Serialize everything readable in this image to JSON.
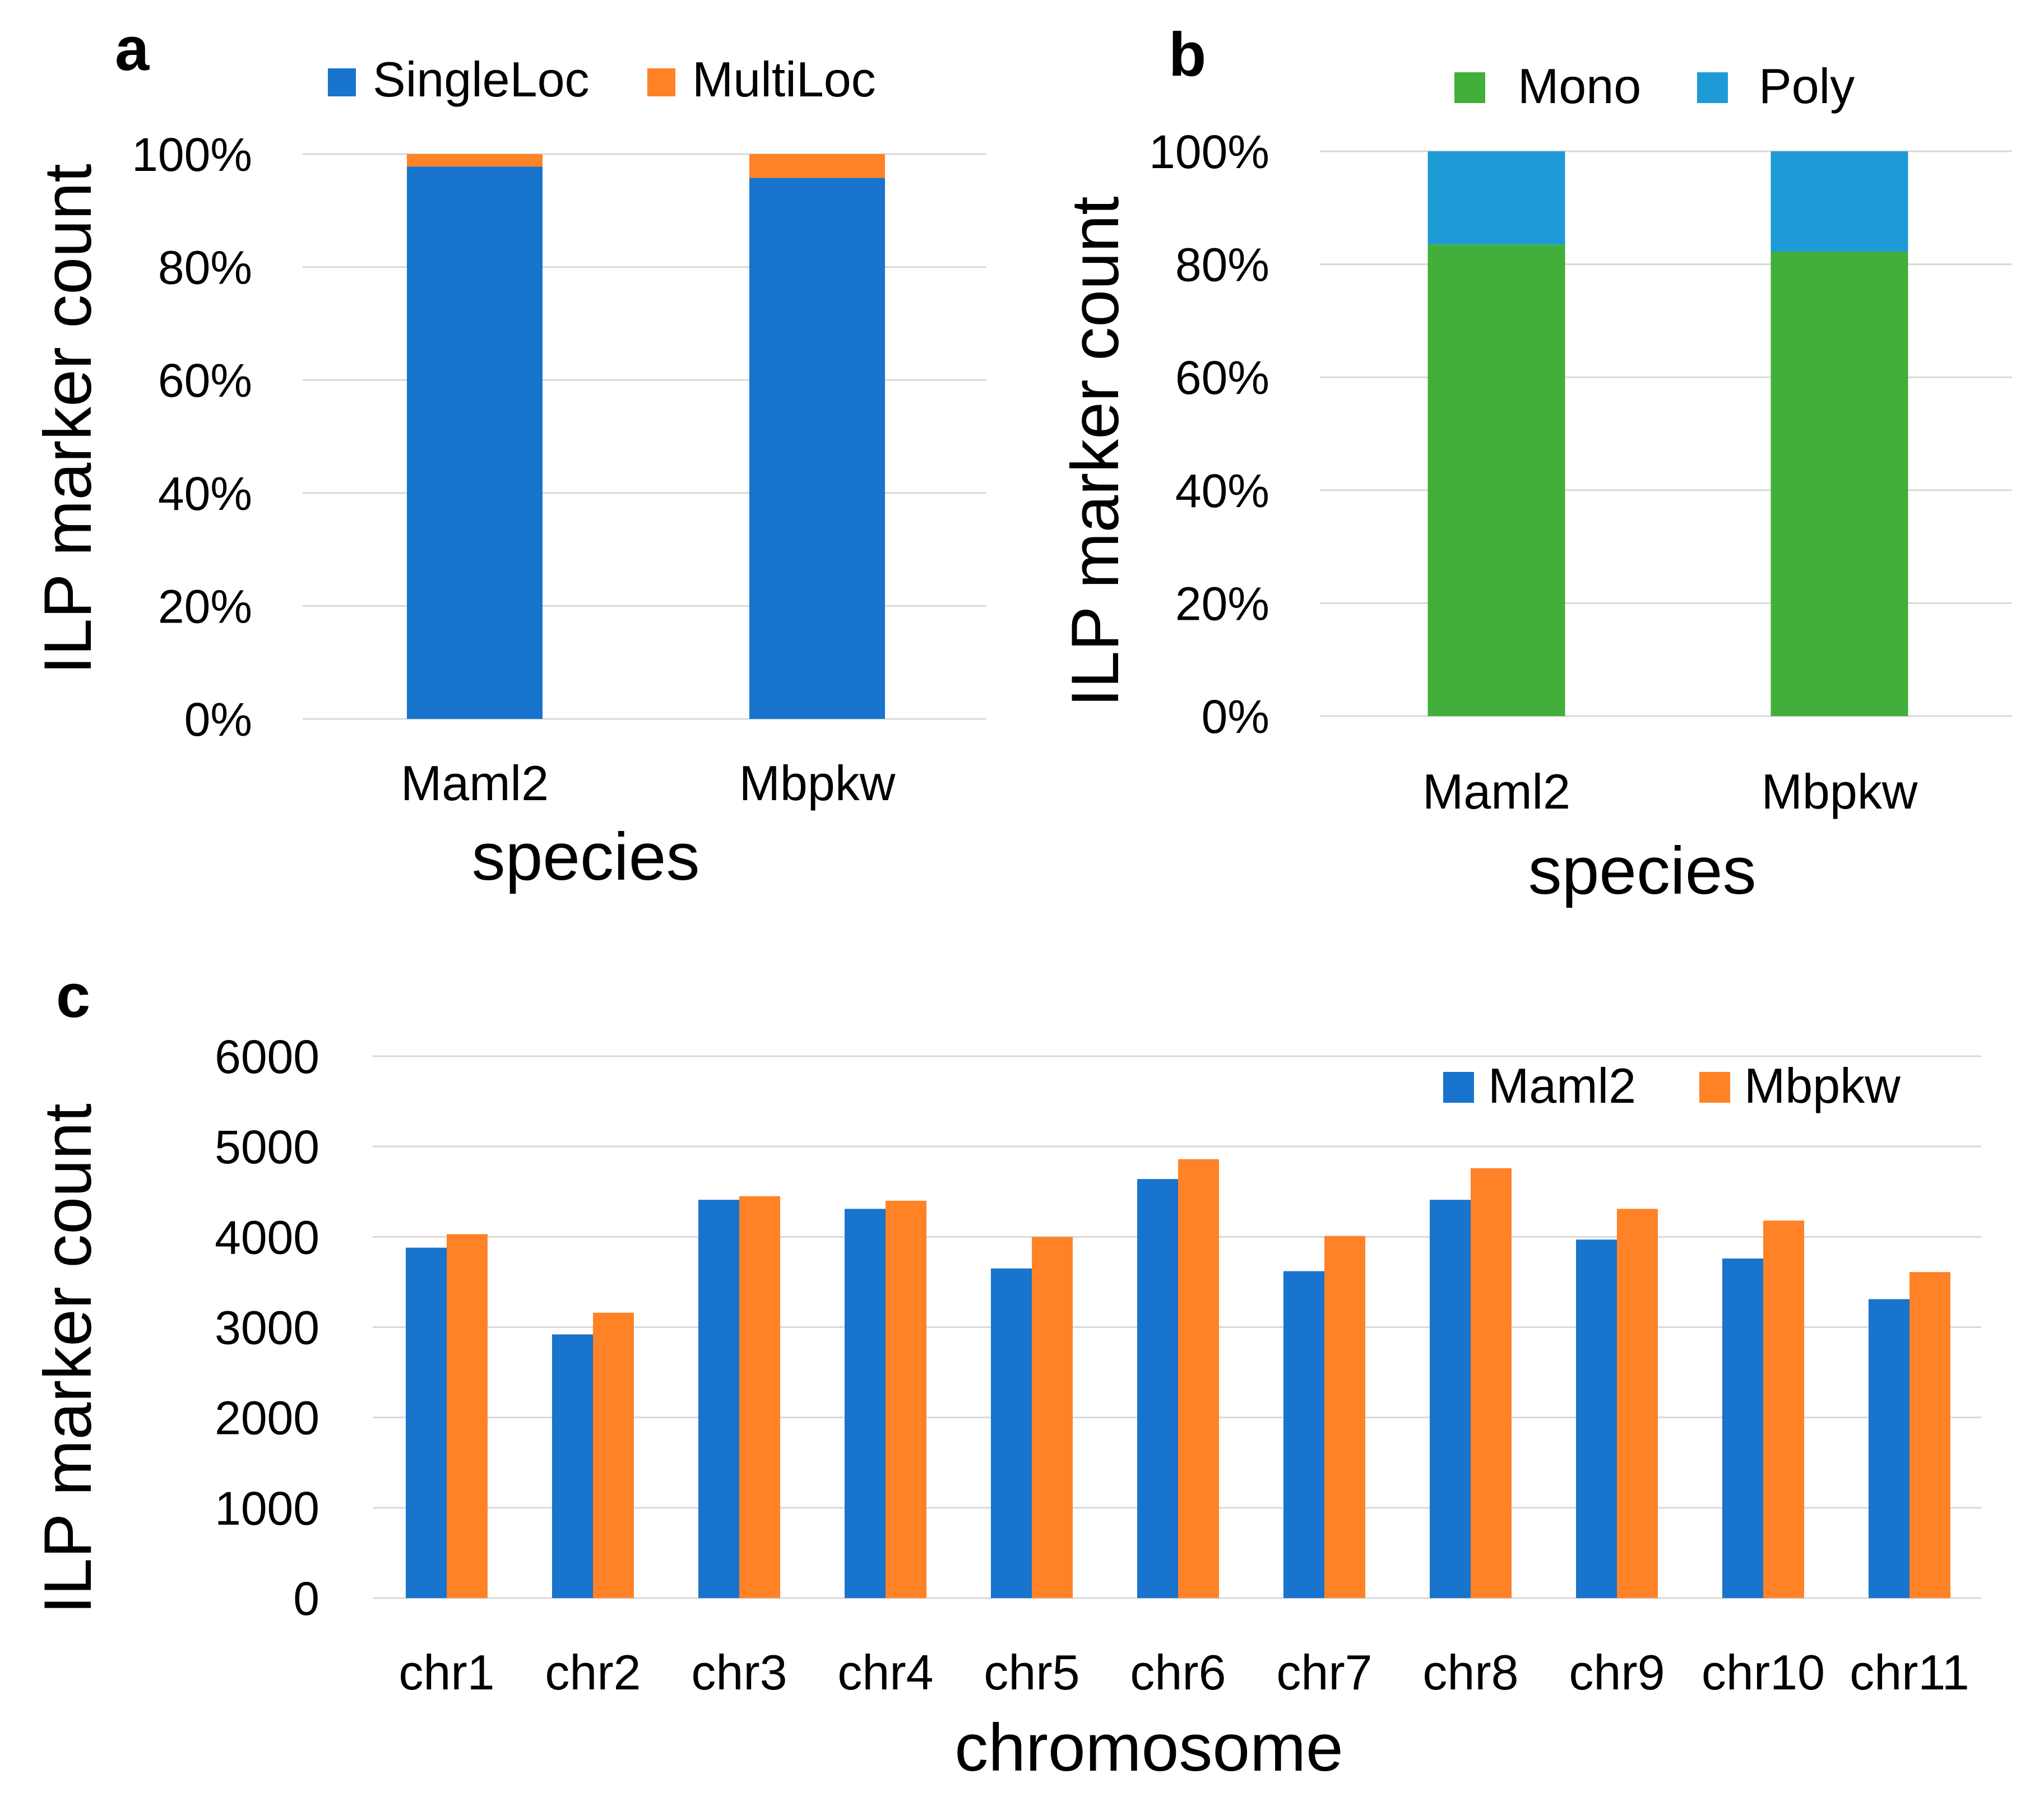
{
  "colors": {
    "singleloc": "#1874CD",
    "multiloc": "#FF8227",
    "mono": "#41AF39",
    "poly": "#1E9BD7",
    "maml2": "#1874CD",
    "mbpkw": "#FF8227",
    "grid": "#d9d9d9"
  },
  "chart_data": [
    {
      "panel": "a",
      "type": "bar",
      "stacked": true,
      "percent": true,
      "title": "",
      "xlabel": "species",
      "ylabel": "ILP marker count",
      "categories": [
        "Maml2",
        "Mbpkw"
      ],
      "series": [
        {
          "name": "SingleLoc",
          "values": [
            97.8,
            95.8
          ]
        },
        {
          "name": "MultiLoc",
          "values": [
            2.2,
            4.2
          ]
        }
      ],
      "ylim": [
        0,
        100
      ],
      "yticks": [
        "0%",
        "20%",
        "40%",
        "60%",
        "80%",
        "100%"
      ],
      "grid": true,
      "legend": "top"
    },
    {
      "panel": "b",
      "type": "bar",
      "stacked": true,
      "percent": true,
      "title": "",
      "xlabel": "species",
      "ylabel": "ILP marker count",
      "categories": [
        "Maml2",
        "Mbpkw"
      ],
      "series": [
        {
          "name": "Mono",
          "values": [
            83.5,
            82.2
          ]
        },
        {
          "name": "Poly",
          "values": [
            16.5,
            17.8
          ]
        }
      ],
      "ylim": [
        0,
        100
      ],
      "yticks": [
        "0%",
        "20%",
        "40%",
        "60%",
        "80%",
        "100%"
      ],
      "grid": true,
      "legend": "top"
    },
    {
      "panel": "c",
      "type": "bar",
      "stacked": false,
      "title": "",
      "xlabel": "chromosome",
      "ylabel": "ILP marker count",
      "categories": [
        "chr1",
        "chr2",
        "chr3",
        "chr4",
        "chr5",
        "chr6",
        "chr7",
        "chr8",
        "chr9",
        "chr10",
        "chr11"
      ],
      "series": [
        {
          "name": "Maml2",
          "values": [
            3880,
            2920,
            4410,
            4310,
            3650,
            4640,
            3620,
            4410,
            3970,
            3760,
            3310
          ]
        },
        {
          "name": "Mbpkw",
          "values": [
            4030,
            3160,
            4450,
            4400,
            4000,
            4860,
            4010,
            4760,
            4310,
            4180,
            3610
          ]
        }
      ],
      "ylim": [
        0,
        6000
      ],
      "yticks": [
        "0",
        "1000",
        "2000",
        "3000",
        "4000",
        "5000",
        "6000"
      ],
      "grid": true,
      "legend": "top-right"
    }
  ]
}
